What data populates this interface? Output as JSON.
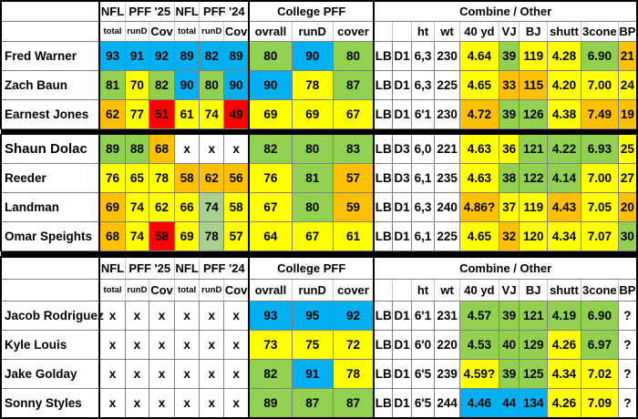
{
  "colors": {
    "blue": "#00b0f0",
    "green": "#92d050",
    "yellow": "#ffff00",
    "orange": "#ffc000",
    "red": "#ff0000",
    "sage": "#a9d08e",
    "white": "#ffffff"
  },
  "header": {
    "group_nfl": "NFL",
    "group_pff25": "PFF '25",
    "group_nfl_b": "NFL",
    "group_pff24": "PFF '24",
    "group_college": "College PFF",
    "group_combine": "Combine / Other",
    "sub": {
      "total": "total",
      "rund": "runD",
      "cov": "Cov",
      "total_b": "total",
      "rund_b": "runD",
      "cov_b": "Cov",
      "ovrall": "ovrall",
      "college_rund": "runD",
      "cover": "cover",
      "ht": "ht",
      "wt": "wt",
      "forty": "40 yd",
      "vj": "VJ",
      "bj": "BJ",
      "shutt": "shutt",
      "three_cone": "3cone",
      "bp": "BP"
    }
  },
  "rows": [
    {
      "name": "Fred Warner",
      "big": false,
      "sep_after": false,
      "cells": [
        {
          "v": "93",
          "c": "blue"
        },
        {
          "v": "91",
          "c": "blue"
        },
        {
          "v": "92",
          "c": "blue"
        },
        {
          "v": "89",
          "c": "blue"
        },
        {
          "v": "82",
          "c": "blue"
        },
        {
          "v": "89",
          "c": "blue"
        },
        {
          "v": "80",
          "c": "green"
        },
        {
          "v": "90",
          "c": "blue"
        },
        {
          "v": "80",
          "c": "green"
        },
        {
          "v": "LB",
          "c": "white"
        },
        {
          "v": "D1",
          "c": "white"
        },
        {
          "v": "6,3",
          "c": "white"
        },
        {
          "v": "230",
          "c": "white"
        },
        {
          "v": "4.64",
          "c": "yellow"
        },
        {
          "v": "39",
          "c": "green"
        },
        {
          "v": "119",
          "c": "yellow"
        },
        {
          "v": "4.28",
          "c": "yellow"
        },
        {
          "v": "6.90",
          "c": "green"
        },
        {
          "v": "21",
          "c": "orange"
        }
      ]
    },
    {
      "name": "Zach Baun",
      "big": false,
      "sep_after": false,
      "cells": [
        {
          "v": "81",
          "c": "green"
        },
        {
          "v": "70",
          "c": "yellow"
        },
        {
          "v": "82",
          "c": "green"
        },
        {
          "v": "90",
          "c": "blue"
        },
        {
          "v": "80",
          "c": "green"
        },
        {
          "v": "90",
          "c": "blue"
        },
        {
          "v": "90",
          "c": "blue"
        },
        {
          "v": "78",
          "c": "yellow"
        },
        {
          "v": "87",
          "c": "green"
        },
        {
          "v": "LB",
          "c": "white"
        },
        {
          "v": "D1",
          "c": "white"
        },
        {
          "v": "6,3",
          "c": "white"
        },
        {
          "v": "225",
          "c": "white"
        },
        {
          "v": "4.65",
          "c": "yellow"
        },
        {
          "v": "33",
          "c": "orange"
        },
        {
          "v": "115",
          "c": "orange"
        },
        {
          "v": "4.20",
          "c": "yellow"
        },
        {
          "v": "7.00",
          "c": "yellow"
        },
        {
          "v": "24",
          "c": "yellow"
        }
      ]
    },
    {
      "name": "Earnest Jones",
      "big": false,
      "sep_after": true,
      "cells": [
        {
          "v": "62",
          "c": "orange"
        },
        {
          "v": "77",
          "c": "yellow"
        },
        {
          "v": "51",
          "c": "red"
        },
        {
          "v": "61",
          "c": "yellow"
        },
        {
          "v": "74",
          "c": "yellow"
        },
        {
          "v": "49",
          "c": "red"
        },
        {
          "v": "69",
          "c": "yellow"
        },
        {
          "v": "69",
          "c": "yellow"
        },
        {
          "v": "67",
          "c": "yellow"
        },
        {
          "v": "LB",
          "c": "white"
        },
        {
          "v": "D1",
          "c": "white"
        },
        {
          "v": "6'1",
          "c": "white"
        },
        {
          "v": "230",
          "c": "white"
        },
        {
          "v": "4.72",
          "c": "orange"
        },
        {
          "v": "39",
          "c": "green"
        },
        {
          "v": "126",
          "c": "green"
        },
        {
          "v": "4.38",
          "c": "yellow"
        },
        {
          "v": "7.49",
          "c": "orange"
        },
        {
          "v": "19",
          "c": "orange"
        }
      ]
    },
    {
      "name": "Shaun Dolac",
      "big": true,
      "sep_after": false,
      "cells": [
        {
          "v": "89",
          "c": "green"
        },
        {
          "v": "88",
          "c": "green"
        },
        {
          "v": "68",
          "c": "orange"
        },
        {
          "v": "x",
          "c": "white"
        },
        {
          "v": "x",
          "c": "white"
        },
        {
          "v": "x",
          "c": "white"
        },
        {
          "v": "82",
          "c": "green"
        },
        {
          "v": "80",
          "c": "green"
        },
        {
          "v": "83",
          "c": "green"
        },
        {
          "v": "LB",
          "c": "white"
        },
        {
          "v": "D3",
          "c": "white"
        },
        {
          "v": "6,0",
          "c": "white"
        },
        {
          "v": "221",
          "c": "white"
        },
        {
          "v": "4.63",
          "c": "yellow"
        },
        {
          "v": "36",
          "c": "yellow"
        },
        {
          "v": "121",
          "c": "green"
        },
        {
          "v": "4.22",
          "c": "green"
        },
        {
          "v": "6.93",
          "c": "green"
        },
        {
          "v": "25",
          "c": "yellow"
        }
      ]
    },
    {
      "name": "Reeder",
      "big": false,
      "sep_after": false,
      "cells": [
        {
          "v": "76",
          "c": "yellow"
        },
        {
          "v": "65",
          "c": "yellow"
        },
        {
          "v": "78",
          "c": "yellow"
        },
        {
          "v": "58",
          "c": "orange"
        },
        {
          "v": "62",
          "c": "orange"
        },
        {
          "v": "56",
          "c": "orange"
        },
        {
          "v": "76",
          "c": "yellow"
        },
        {
          "v": "81",
          "c": "green"
        },
        {
          "v": "57",
          "c": "orange"
        },
        {
          "v": "LB",
          "c": "white"
        },
        {
          "v": "D3",
          "c": "white"
        },
        {
          "v": "6,1",
          "c": "white"
        },
        {
          "v": "235",
          "c": "white"
        },
        {
          "v": "4.63",
          "c": "yellow"
        },
        {
          "v": "38",
          "c": "green"
        },
        {
          "v": "122",
          "c": "green"
        },
        {
          "v": "4.14",
          "c": "green"
        },
        {
          "v": "7.00",
          "c": "yellow"
        },
        {
          "v": "27",
          "c": "yellow"
        }
      ]
    },
    {
      "name": "Landman",
      "big": false,
      "sep_after": false,
      "cells": [
        {
          "v": "69",
          "c": "orange"
        },
        {
          "v": "74",
          "c": "yellow"
        },
        {
          "v": "62",
          "c": "yellow"
        },
        {
          "v": "66",
          "c": "yellow"
        },
        {
          "v": "74",
          "c": "sage"
        },
        {
          "v": "58",
          "c": "yellow"
        },
        {
          "v": "67",
          "c": "yellow"
        },
        {
          "v": "80",
          "c": "green"
        },
        {
          "v": "59",
          "c": "orange"
        },
        {
          "v": "LB",
          "c": "white"
        },
        {
          "v": "D1",
          "c": "white"
        },
        {
          "v": "6,3",
          "c": "white"
        },
        {
          "v": "240",
          "c": "white"
        },
        {
          "v": "4.86?",
          "c": "orange"
        },
        {
          "v": "37",
          "c": "yellow"
        },
        {
          "v": "119",
          "c": "yellow"
        },
        {
          "v": "4.43",
          "c": "orange"
        },
        {
          "v": "7.05",
          "c": "yellow"
        },
        {
          "v": "20",
          "c": "orange"
        }
      ]
    },
    {
      "name": "Omar Speights",
      "big": false,
      "sep_after": true,
      "cells": [
        {
          "v": "68",
          "c": "orange"
        },
        {
          "v": "74",
          "c": "yellow"
        },
        {
          "v": "58",
          "c": "red"
        },
        {
          "v": "69",
          "c": "yellow"
        },
        {
          "v": "78",
          "c": "sage"
        },
        {
          "v": "57",
          "c": "yellow"
        },
        {
          "v": "64",
          "c": "yellow"
        },
        {
          "v": "67",
          "c": "yellow"
        },
        {
          "v": "61",
          "c": "yellow"
        },
        {
          "v": "LB",
          "c": "white"
        },
        {
          "v": "D1",
          "c": "white"
        },
        {
          "v": "6,1",
          "c": "white"
        },
        {
          "v": "225",
          "c": "white"
        },
        {
          "v": "4.65",
          "c": "yellow"
        },
        {
          "v": "32",
          "c": "orange"
        },
        {
          "v": "120",
          "c": "yellow"
        },
        {
          "v": "4.34",
          "c": "yellow"
        },
        {
          "v": "7.07",
          "c": "yellow"
        },
        {
          "v": "30",
          "c": "green"
        }
      ]
    },
    {
      "name": "Jacob Rodriguez",
      "big": false,
      "sep_after": false,
      "cells": [
        {
          "v": "x",
          "c": "white"
        },
        {
          "v": "x",
          "c": "white"
        },
        {
          "v": "x",
          "c": "white"
        },
        {
          "v": "x",
          "c": "white"
        },
        {
          "v": "x",
          "c": "white"
        },
        {
          "v": "x",
          "c": "white"
        },
        {
          "v": "93",
          "c": "blue"
        },
        {
          "v": "95",
          "c": "blue"
        },
        {
          "v": "92",
          "c": "blue"
        },
        {
          "v": "LB",
          "c": "white"
        },
        {
          "v": "D1",
          "c": "white"
        },
        {
          "v": "6'1",
          "c": "white"
        },
        {
          "v": "231",
          "c": "white"
        },
        {
          "v": "4.57",
          "c": "green"
        },
        {
          "v": "39",
          "c": "green"
        },
        {
          "v": "121",
          "c": "green"
        },
        {
          "v": "4.19",
          "c": "green"
        },
        {
          "v": "6.90",
          "c": "green"
        },
        {
          "v": "?",
          "c": "white"
        }
      ]
    },
    {
      "name": "Kyle Louis",
      "big": false,
      "sep_after": false,
      "cells": [
        {
          "v": "x",
          "c": "white"
        },
        {
          "v": "x",
          "c": "white"
        },
        {
          "v": "x",
          "c": "white"
        },
        {
          "v": "x",
          "c": "white"
        },
        {
          "v": "x",
          "c": "white"
        },
        {
          "v": "x",
          "c": "white"
        },
        {
          "v": "73",
          "c": "yellow"
        },
        {
          "v": "75",
          "c": "yellow"
        },
        {
          "v": "72",
          "c": "yellow"
        },
        {
          "v": "LB",
          "c": "white"
        },
        {
          "v": "D1",
          "c": "white"
        },
        {
          "v": "6'0",
          "c": "white"
        },
        {
          "v": "220",
          "c": "white"
        },
        {
          "v": "4.53",
          "c": "green"
        },
        {
          "v": "40",
          "c": "green"
        },
        {
          "v": "129",
          "c": "green"
        },
        {
          "v": "4.26",
          "c": "yellow"
        },
        {
          "v": "6.97",
          "c": "green"
        },
        {
          "v": "?",
          "c": "white"
        }
      ]
    },
    {
      "name": "Jake Golday",
      "big": false,
      "sep_after": false,
      "cells": [
        {
          "v": "x",
          "c": "white"
        },
        {
          "v": "x",
          "c": "white"
        },
        {
          "v": "x",
          "c": "white"
        },
        {
          "v": "x",
          "c": "white"
        },
        {
          "v": "x",
          "c": "white"
        },
        {
          "v": "x",
          "c": "white"
        },
        {
          "v": "82",
          "c": "green"
        },
        {
          "v": "91",
          "c": "blue"
        },
        {
          "v": "78",
          "c": "yellow"
        },
        {
          "v": "LB",
          "c": "white"
        },
        {
          "v": "D1",
          "c": "white"
        },
        {
          "v": "6'5",
          "c": "white"
        },
        {
          "v": "239",
          "c": "white"
        },
        {
          "v": "4.59?",
          "c": "yellow"
        },
        {
          "v": "39",
          "c": "green"
        },
        {
          "v": "125",
          "c": "green"
        },
        {
          "v": "4.34",
          "c": "yellow"
        },
        {
          "v": "7.02",
          "c": "yellow"
        },
        {
          "v": "?",
          "c": "white"
        }
      ]
    },
    {
      "name": "Sonny Styles",
      "big": false,
      "sep_after": false,
      "cells": [
        {
          "v": "x",
          "c": "white"
        },
        {
          "v": "x",
          "c": "white"
        },
        {
          "v": "x",
          "c": "white"
        },
        {
          "v": "x",
          "c": "white"
        },
        {
          "v": "x",
          "c": "white"
        },
        {
          "v": "x",
          "c": "white"
        },
        {
          "v": "89",
          "c": "green"
        },
        {
          "v": "87",
          "c": "green"
        },
        {
          "v": "87",
          "c": "green"
        },
        {
          "v": "LB",
          "c": "white"
        },
        {
          "v": "D1",
          "c": "white"
        },
        {
          "v": "6'5",
          "c": "white"
        },
        {
          "v": "244",
          "c": "white"
        },
        {
          "v": "4.46",
          "c": "blue"
        },
        {
          "v": "44",
          "c": "blue"
        },
        {
          "v": "134",
          "c": "blue"
        },
        {
          "v": "4.26",
          "c": "yellow"
        },
        {
          "v": "7.09",
          "c": "yellow"
        },
        {
          "v": "?",
          "c": "white"
        }
      ]
    }
  ]
}
